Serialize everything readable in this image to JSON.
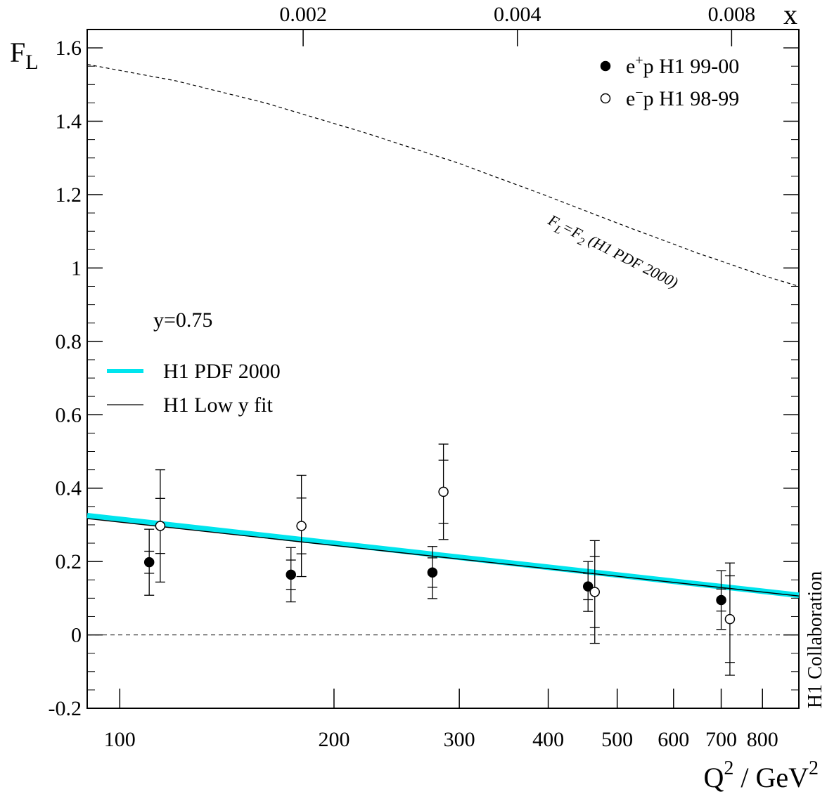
{
  "chart_data": {
    "type": "scatter",
    "x_scale": "log",
    "x_ticks": [
      100,
      200,
      300,
      400,
      500,
      600,
      700,
      800
    ],
    "y_ticks": [
      -0.2,
      0,
      0.2,
      0.4,
      0.6,
      0.8,
      1,
      1.2,
      1.4,
      1.6
    ],
    "y_tick_labels": [
      "-0.2",
      "0",
      "0.2",
      "0.4",
      "0.6",
      "0.8",
      "1",
      "1.2",
      "1.4",
      "1.6"
    ],
    "xlim": [
      90,
      900
    ],
    "ylim": [
      -0.2,
      1.65
    ],
    "top_axis": {
      "label": "x",
      "tick_labels": [
        "0.002",
        "0.004",
        "0.008"
      ],
      "tick_q2": [
        181,
        362,
        724
      ]
    },
    "ylabel": {
      "base": "F",
      "sub": "L"
    },
    "xlabel": {
      "q": "Q",
      "sup1": "2",
      "rest": " / GeV",
      "sup2": "2"
    },
    "annotation_y": "y=0.75",
    "collaboration": "H1 Collaboration",
    "series": [
      {
        "name": "e⁺p H1 99-00",
        "marker": "filled-circle",
        "legend_text": {
          "pre": "e",
          "sup": "+",
          "post": "p H1 99-00"
        },
        "points": [
          {
            "x": 110,
            "y": 0.198,
            "stat": 0.03,
            "tot": 0.09
          },
          {
            "x": 174,
            "y": 0.164,
            "stat": 0.04,
            "tot": 0.074
          },
          {
            "x": 275,
            "y": 0.17,
            "stat": 0.04,
            "tot": 0.071
          },
          {
            "x": 455,
            "y": 0.132,
            "stat": 0.036,
            "tot": 0.068
          },
          {
            "x": 700,
            "y": 0.095,
            "stat": 0.03,
            "tot": 0.08
          }
        ]
      },
      {
        "name": "e⁻p H1 98-99",
        "marker": "open-circle",
        "legend_text": {
          "pre": "e",
          "sup": "−",
          "post": "p H1 98-99"
        },
        "points": [
          {
            "x": 114,
            "y": 0.297,
            "stat": 0.075,
            "tot": 0.153
          },
          {
            "x": 180,
            "y": 0.297,
            "stat": 0.076,
            "tot": 0.138
          },
          {
            "x": 285,
            "y": 0.39,
            "stat": 0.086,
            "tot": 0.13
          },
          {
            "x": 465,
            "y": 0.117,
            "stat": 0.097,
            "tot": 0.14
          },
          {
            "x": 720,
            "y": 0.043,
            "stat": 0.118,
            "tot": 0.153
          }
        ]
      }
    ],
    "curves": [
      {
        "name": "H1 PDF 2000",
        "style": "band",
        "color": "#00e5ee",
        "points": [
          [
            90,
            0.325
          ],
          [
            900,
            0.108
          ]
        ]
      },
      {
        "name": "H1 Low y fit",
        "style": "line",
        "color": "#000000",
        "points": [
          [
            90,
            0.317
          ],
          [
            900,
            0.106
          ]
        ]
      },
      {
        "name": "F_L=F_2 (H1 PDF 2000)",
        "style": "dashed",
        "color": "#000000",
        "label": {
          "pre": "F",
          "sub1": "L",
          "mid": "=F",
          "sub2": "2",
          "post": " (H1 PDF 2000)"
        },
        "points": [
          [
            90,
            1.555
          ],
          [
            120,
            1.51
          ],
          [
            160,
            1.45
          ],
          [
            220,
            1.37
          ],
          [
            300,
            1.285
          ],
          [
            400,
            1.195
          ],
          [
            520,
            1.11
          ],
          [
            650,
            1.04
          ],
          [
            800,
            0.98
          ],
          [
            900,
            0.95
          ]
        ]
      }
    ],
    "zero_line": {
      "y": 0,
      "style": "dashed"
    }
  }
}
